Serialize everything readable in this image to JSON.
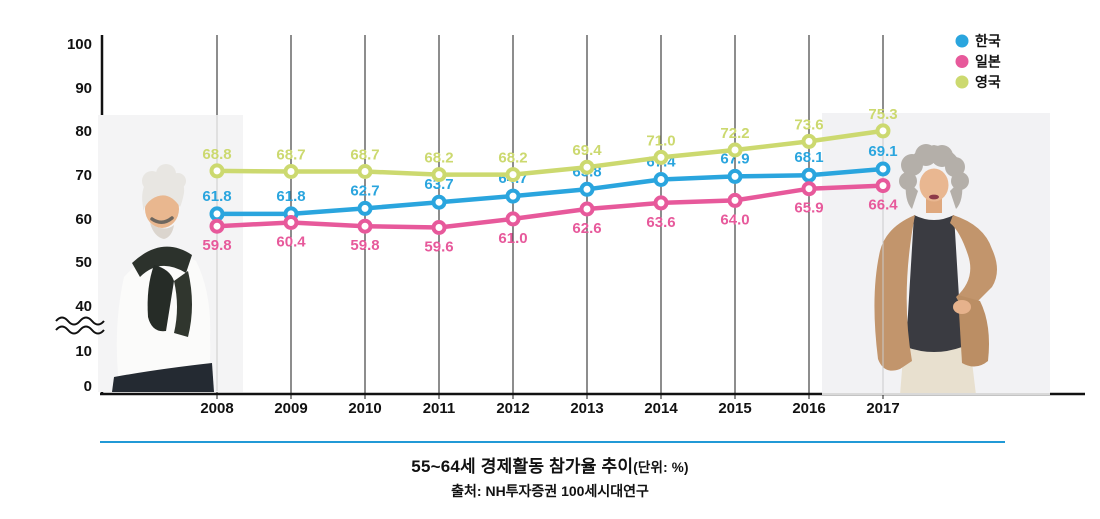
{
  "chart_data": {
    "type": "line",
    "title": "55~64세 경제활동 참가율 추이",
    "title_unit": "(단위: %)",
    "source": "출처: NH투자증권 100세시대연구",
    "categories": [
      "2008",
      "2009",
      "2010",
      "2011",
      "2012",
      "2013",
      "2014",
      "2015",
      "2016",
      "2017"
    ],
    "series": [
      {
        "name": "한국",
        "color": "#2AA5DE",
        "label_side": "above",
        "values": [
          61.8,
          61.8,
          62.7,
          63.7,
          64.7,
          65.8,
          67.4,
          67.9,
          68.1,
          69.1
        ]
      },
      {
        "name": "일본",
        "color": "#E7599B",
        "label_side": "below",
        "values": [
          59.8,
          60.4,
          59.8,
          59.6,
          61.0,
          62.6,
          63.6,
          64.0,
          65.9,
          66.4
        ]
      },
      {
        "name": "영국",
        "color": "#CCD96F",
        "label_side": "above",
        "values": [
          68.8,
          68.7,
          68.7,
          68.2,
          68.2,
          69.4,
          71.0,
          72.2,
          73.6,
          75.3
        ]
      }
    ],
    "y_ticks": [
      "100",
      "90",
      "80",
      "70",
      "60",
      "50",
      "40",
      "10",
      "0"
    ],
    "ylim": [
      0,
      100
    ],
    "axis_break": true,
    "legend_position": "top-right",
    "grid": "vertical-only",
    "unit": "%"
  },
  "decor": {
    "left_photo": "elderly-man-photo",
    "right_photo": "elderly-woman-photo"
  },
  "colors": {
    "grid": "#1b1b1b",
    "axis": "#111111",
    "grid_over_photo": "#cbcbcb",
    "divider_blue": "#2199d6",
    "text": "#111111",
    "photo_bg": "#f3f3f5"
  }
}
